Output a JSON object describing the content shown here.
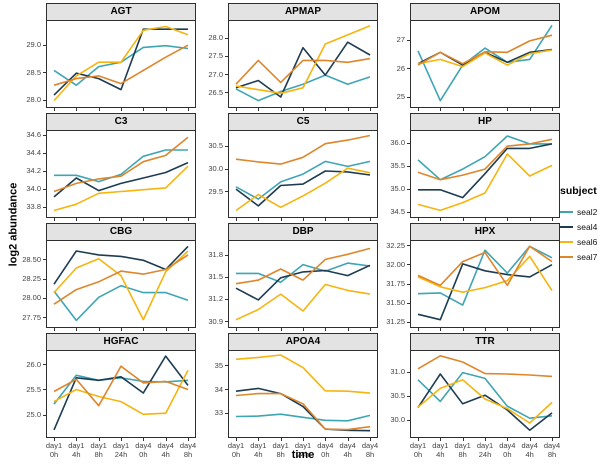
{
  "figure": {
    "ylabel": "log2 abundance",
    "xlabel": "time",
    "x_tick_labels": [
      [
        "day1",
        "0h"
      ],
      [
        "day1",
        "4h"
      ],
      [
        "day1",
        "8h"
      ],
      [
        "day1",
        "24h"
      ],
      [
        "day4",
        "0h"
      ],
      [
        "day4",
        "4h"
      ],
      [
        "day4",
        "8h"
      ]
    ]
  },
  "legend": {
    "title": "subject",
    "entries": [
      {
        "label": "seal2",
        "color": "#3fa5b4"
      },
      {
        "label": "seal4",
        "color": "#1d3c52"
      },
      {
        "label": "seal6",
        "color": "#f6b40e"
      },
      {
        "label": "seal7",
        "color": "#de862b"
      }
    ]
  },
  "chart_data": {
    "type": "line",
    "layout": "facet grid 3 columns x 4 rows, free y scales, no gridlines, legend right",
    "title": "",
    "xlabel": "time",
    "ylabel": "log2 abundance",
    "categories": [
      "day1 0h",
      "day1 4h",
      "day1 8h",
      "day1 24h",
      "day4 0h",
      "day4 4h",
      "day4 8h"
    ],
    "series_names": [
      "seal2",
      "seal4",
      "seal6",
      "seal7"
    ],
    "panels": [
      {
        "title": "AGT",
        "yticks": [
          "28.0",
          "28.5",
          "29.0"
        ],
        "ylim": [
          27.92,
          29.45
        ],
        "series": {
          "seal2": [
            28.55,
            28.28,
            28.62,
            28.7,
            28.97,
            29.0,
            28.95
          ],
          "seal4": [
            28.1,
            28.5,
            28.4,
            28.2,
            29.3,
            29.3,
            29.3
          ],
          "seal6": [
            28.0,
            28.45,
            28.7,
            28.7,
            29.28,
            29.35,
            29.2
          ],
          "seal7": [
            28.28,
            28.4,
            28.45,
            28.31,
            28.55,
            28.79,
            29.01
          ]
        }
      },
      {
        "title": "APMAP",
        "yticks": [
          "26.5",
          "27.0",
          "27.5",
          "28.0"
        ],
        "ylim": [
          26.18,
          28.48
        ],
        "series": {
          "seal2": [
            26.62,
            26.3,
            26.55,
            26.75,
            27.0,
            26.75,
            26.95
          ],
          "seal4": [
            26.65,
            26.85,
            26.4,
            27.75,
            27.0,
            27.9,
            27.55
          ],
          "seal6": [
            26.7,
            26.6,
            26.5,
            26.65,
            27.85,
            28.1,
            28.35
          ],
          "seal7": [
            26.75,
            27.4,
            26.8,
            27.4,
            27.4,
            27.35,
            27.45
          ]
        }
      },
      {
        "title": "APOM",
        "yticks": [
          "25",
          "26",
          "27"
        ],
        "ylim": [
          24.75,
          27.7
        ],
        "series": {
          "seal2": [
            26.65,
            24.9,
            26.15,
            26.75,
            26.25,
            26.35,
            27.55
          ],
          "seal4": [
            26.2,
            26.6,
            26.15,
            26.6,
            26.25,
            26.6,
            26.7
          ],
          "seal6": [
            26.2,
            26.35,
            26.1,
            26.58,
            26.15,
            26.55,
            26.68
          ],
          "seal7": [
            26.15,
            26.6,
            26.2,
            26.62,
            26.6,
            27.0,
            27.2
          ]
        }
      },
      {
        "title": "C3",
        "yticks": [
          "33.8",
          "34.0",
          "34.2",
          "34.4",
          "34.6"
        ],
        "ylim": [
          33.72,
          34.65
        ],
        "series": {
          "seal2": [
            34.16,
            34.16,
            34.09,
            34.17,
            34.37,
            34.44,
            34.44
          ],
          "seal4": [
            33.92,
            34.13,
            33.99,
            34.07,
            34.13,
            34.19,
            34.3
          ],
          "seal6": [
            33.77,
            33.84,
            33.96,
            33.98,
            34.0,
            34.02,
            34.26
          ],
          "seal7": [
            33.98,
            34.07,
            34.12,
            34.15,
            34.31,
            34.38,
            34.58
          ]
        }
      },
      {
        "title": "C5",
        "yticks": [
          "29.5",
          "30.0",
          "30.5"
        ],
        "ylim": [
          29.0,
          30.85
        ],
        "series": {
          "seal2": [
            29.62,
            29.35,
            29.73,
            29.9,
            30.18,
            30.07,
            30.18
          ],
          "seal4": [
            29.57,
            29.2,
            29.65,
            29.68,
            29.97,
            29.95,
            29.88
          ],
          "seal6": [
            29.1,
            29.45,
            29.17,
            29.42,
            29.7,
            30.03,
            29.93
          ],
          "seal7": [
            30.23,
            30.17,
            30.12,
            30.27,
            30.57,
            30.65,
            30.75
          ]
        }
      },
      {
        "title": "HP",
        "yticks": [
          "34.5",
          "35.0",
          "35.5",
          "36.0"
        ],
        "ylim": [
          34.45,
          36.28
        ],
        "series": {
          "seal2": [
            35.65,
            35.22,
            35.45,
            35.72,
            36.17,
            36.0,
            36.0
          ],
          "seal4": [
            35.0,
            35.0,
            34.83,
            35.35,
            35.9,
            35.9,
            36.0
          ],
          "seal6": [
            34.68,
            34.55,
            34.72,
            34.93,
            35.78,
            35.3,
            35.53
          ],
          "seal7": [
            35.38,
            35.22,
            35.32,
            35.45,
            35.95,
            36.0,
            36.1
          ]
        }
      },
      {
        "title": "CBG",
        "yticks": [
          "27.75",
          "28.00",
          "28.25",
          "28.50"
        ],
        "ylim": [
          27.66,
          28.75
        ],
        "series": {
          "seal2": [
            28.1,
            27.72,
            28.02,
            28.17,
            28.08,
            28.08,
            27.98
          ],
          "seal4": [
            28.19,
            28.62,
            28.57,
            28.55,
            28.5,
            28.38,
            28.68
          ],
          "seal6": [
            28.08,
            28.4,
            28.52,
            28.3,
            27.73,
            28.35,
            28.62
          ],
          "seal7": [
            27.93,
            28.12,
            28.22,
            28.36,
            28.32,
            28.38,
            28.57
          ]
        }
      },
      {
        "title": "DBP",
        "yticks": [
          "30.9",
          "31.2",
          "31.5",
          "31.8"
        ],
        "ylim": [
          30.86,
          32.0
        ],
        "series": {
          "seal2": [
            31.56,
            31.56,
            31.44,
            31.68,
            31.59,
            31.7,
            31.66
          ],
          "seal4": [
            31.36,
            31.2,
            31.5,
            31.58,
            31.6,
            31.53,
            31.67
          ],
          "seal6": [
            30.93,
            31.07,
            31.28,
            31.05,
            31.41,
            31.33,
            31.28
          ],
          "seal7": [
            31.42,
            31.47,
            31.62,
            31.47,
            31.75,
            31.82,
            31.9
          ]
        }
      },
      {
        "title": "HPX",
        "yticks": [
          "31.25",
          "31.50",
          "31.75",
          "32.00",
          "32.25"
        ],
        "ylim": [
          31.22,
          32.32
        ],
        "series": {
          "seal2": [
            31.63,
            31.64,
            31.48,
            32.2,
            31.9,
            32.25,
            32.1
          ],
          "seal4": [
            31.36,
            31.29,
            32.02,
            31.93,
            31.88,
            31.85,
            32.01
          ],
          "seal6": [
            31.85,
            31.72,
            31.65,
            31.71,
            31.8,
            32.12,
            31.67
          ],
          "seal7": [
            31.87,
            31.74,
            32.05,
            32.17,
            31.74,
            32.25,
            32.05
          ]
        }
      },
      {
        "title": "HGFAC",
        "yticks": [
          "25.0",
          "25.5",
          "26.0"
        ],
        "ylim": [
          24.62,
          26.28
        ],
        "series": {
          "seal2": [
            25.23,
            25.8,
            25.7,
            25.75,
            25.68,
            25.67,
            25.7
          ],
          "seal4": [
            24.72,
            25.75,
            25.7,
            25.77,
            25.45,
            26.18,
            25.6
          ],
          "seal6": [
            25.28,
            25.52,
            25.38,
            25.28,
            25.03,
            25.05,
            25.9
          ],
          "seal7": [
            25.48,
            25.72,
            25.2,
            25.98,
            25.65,
            25.68,
            25.52
          ]
        }
      },
      {
        "title": "APOA4",
        "yticks": [
          "33",
          "34",
          "35"
        ],
        "ylim": [
          32.1,
          35.65
        ],
        "series": {
          "seal2": [
            32.88,
            32.9,
            32.98,
            32.85,
            32.72,
            32.7,
            32.93
          ],
          "seal4": [
            33.95,
            34.07,
            33.85,
            33.3,
            32.35,
            32.3,
            32.28
          ],
          "seal6": [
            35.3,
            35.38,
            35.48,
            34.95,
            33.97,
            33.95,
            33.87
          ],
          "seal7": [
            33.77,
            33.85,
            33.85,
            33.42,
            32.35,
            32.33,
            32.45
          ]
        }
      },
      {
        "title": "TTR",
        "yticks": [
          "30.0",
          "30.5",
          "31.0"
        ],
        "ylim": [
          29.7,
          31.45
        ],
        "series": {
          "seal2": [
            30.85,
            30.4,
            31.0,
            30.88,
            30.3,
            30.05,
            30.1
          ],
          "seal4": [
            30.27,
            30.97,
            30.35,
            30.53,
            30.22,
            29.8,
            30.16
          ],
          "seal6": [
            30.28,
            30.67,
            30.85,
            30.45,
            30.25,
            29.95,
            30.38
          ],
          "seal7": [
            31.08,
            31.35,
            31.22,
            30.98,
            30.97,
            30.95,
            30.92
          ]
        }
      }
    ]
  }
}
